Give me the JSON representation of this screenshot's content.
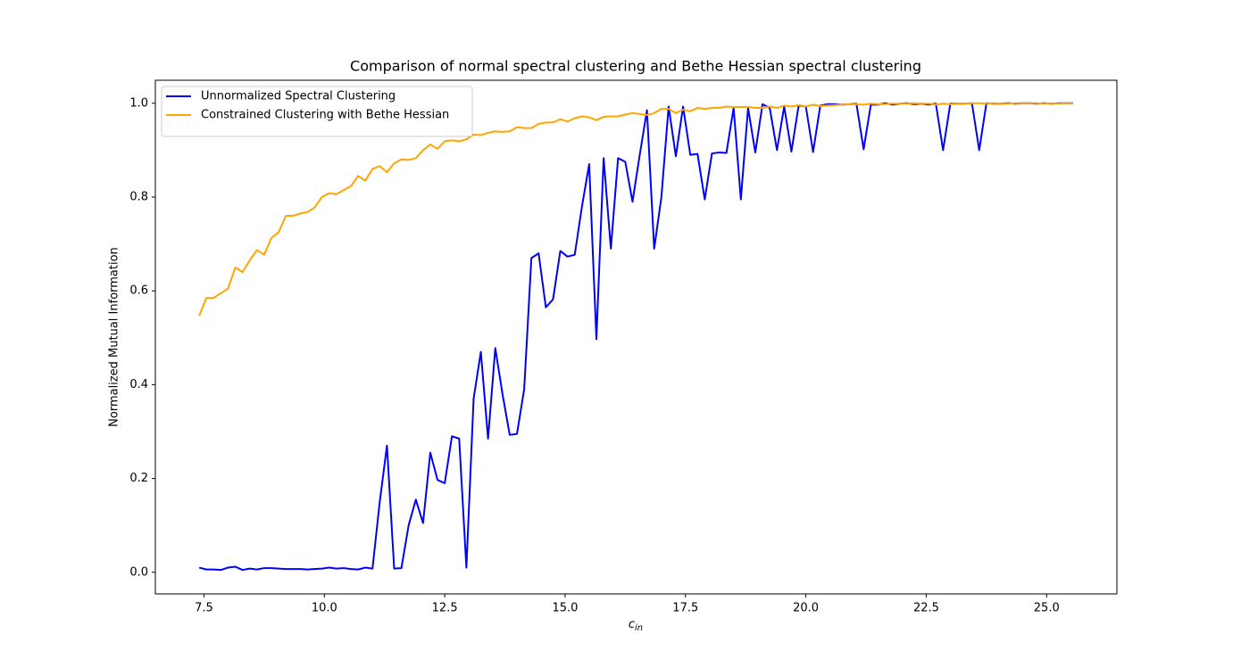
{
  "chart_data": {
    "type": "line",
    "title": "Comparison of normal spectral clustering and Bethe Hessian spectral clustering",
    "xlabel": "c",
    "xlabel_subscript": "in",
    "ylabel": "Normalized Mutual Information",
    "x": [
      7.4,
      7.55,
      7.7,
      7.85,
      8.0,
      8.15,
      8.3,
      8.45,
      8.6,
      8.75,
      8.9,
      9.05,
      9.2,
      9.35,
      9.5,
      9.65,
      9.8,
      9.95,
      10.1,
      10.25,
      10.4,
      10.55,
      10.7,
      10.85,
      11.0,
      11.15,
      11.3,
      11.45,
      11.6,
      11.75,
      11.9,
      12.05,
      12.2,
      12.35,
      12.5,
      12.65,
      12.8,
      12.95,
      13.1,
      13.25,
      13.4,
      13.55,
      13.7,
      13.85,
      14.0,
      14.15,
      14.3,
      14.45,
      14.6,
      14.75,
      14.9,
      15.05,
      15.2,
      15.35,
      15.5,
      15.65,
      15.8,
      15.95,
      16.1,
      16.25,
      16.4,
      16.55,
      16.7,
      16.85,
      17.0,
      17.15,
      17.3,
      17.45,
      17.6,
      17.75,
      17.9,
      18.05,
      18.2,
      18.35,
      18.5,
      18.65,
      18.8,
      18.95,
      19.1,
      19.25,
      19.4,
      19.55,
      19.7,
      19.85,
      20.0,
      20.15,
      20.3,
      20.45,
      20.6,
      20.75,
      20.9,
      21.05,
      21.2,
      21.35,
      21.5,
      21.65,
      21.8,
      21.95,
      22.1,
      22.25,
      22.4,
      22.55,
      22.7,
      22.85,
      23.0,
      23.15,
      23.3,
      23.45,
      23.6,
      23.75,
      23.9,
      24.05,
      24.2,
      24.35,
      24.5,
      24.65,
      24.8,
      24.95,
      25.1,
      25.25,
      25.4,
      25.55
    ],
    "series": [
      {
        "name": "Unnormalized Spectral Clustering",
        "color": "#0000ff",
        "values": [
          0.01,
          0.006,
          0.006,
          0.005,
          0.01,
          0.012,
          0.005,
          0.008,
          0.006,
          0.009,
          0.009,
          0.008,
          0.007,
          0.007,
          0.007,
          0.006,
          0.007,
          0.008,
          0.01,
          0.008,
          0.009,
          0.007,
          0.006,
          0.01,
          0.008,
          0.15,
          0.27,
          0.008,
          0.009,
          0.1,
          0.155,
          0.105,
          0.255,
          0.197,
          0.19,
          0.29,
          0.285,
          0.01,
          0.37,
          0.47,
          0.285,
          0.478,
          0.38,
          0.293,
          0.295,
          0.39,
          0.67,
          0.68,
          0.565,
          0.582,
          0.685,
          0.673,
          0.677,
          0.78,
          0.87,
          0.497,
          0.883,
          0.69,
          0.883,
          0.875,
          0.79,
          0.89,
          0.985,
          0.69,
          0.8,
          0.993,
          0.887,
          0.993,
          0.89,
          0.892,
          0.795,
          0.893,
          0.895,
          0.894,
          0.99,
          0.795,
          0.99,
          0.895,
          0.998,
          0.99,
          0.9,
          0.993,
          0.897,
          0.995,
          0.993,
          0.896,
          0.995,
          0.998,
          0.998,
          0.997,
          0.998,
          0.999,
          0.902,
          0.997,
          0.997,
          1.0,
          0.997,
          0.999,
          1.0,
          0.998,
          0.999,
          0.997,
          0.999,
          0.9,
          0.999,
          0.999,
          0.999,
          1.0,
          0.9,
          1.0,
          0.999,
          0.999,
          1.0,
          0.999,
          1.0,
          1.0,
          0.999,
          1.0,
          0.999,
          1.0,
          1.0,
          1.0
        ]
      },
      {
        "name": "Constrained Clustering with Bethe Hessian",
        "color": "#ffa500",
        "values": [
          0.547,
          0.585,
          0.585,
          0.595,
          0.605,
          0.65,
          0.64,
          0.665,
          0.687,
          0.677,
          0.713,
          0.725,
          0.76,
          0.76,
          0.765,
          0.768,
          0.778,
          0.8,
          0.808,
          0.806,
          0.815,
          0.823,
          0.845,
          0.835,
          0.86,
          0.866,
          0.853,
          0.872,
          0.88,
          0.879,
          0.883,
          0.9,
          0.912,
          0.903,
          0.919,
          0.921,
          0.919,
          0.923,
          0.933,
          0.932,
          0.937,
          0.94,
          0.939,
          0.94,
          0.949,
          0.947,
          0.947,
          0.956,
          0.959,
          0.959,
          0.966,
          0.961,
          0.968,
          0.972,
          0.97,
          0.964,
          0.971,
          0.972,
          0.972,
          0.976,
          0.979,
          0.977,
          0.975,
          0.979,
          0.988,
          0.988,
          0.979,
          0.986,
          0.983,
          0.99,
          0.988,
          0.99,
          0.99,
          0.993,
          0.992,
          0.992,
          0.992,
          0.99,
          0.99,
          0.993,
          0.99,
          0.995,
          0.993,
          0.996,
          0.993,
          0.997,
          0.994,
          0.995,
          0.996,
          0.997,
          0.998,
          0.998,
          0.997,
          0.999,
          0.998,
          0.998,
          0.999,
          0.999,
          0.999,
          1.0,
          0.999,
          0.999,
          0.997,
          0.999,
          0.998,
          0.999,
          0.999,
          1.0,
          1.0,
          0.999,
          1.0,
          0.999,
          0.999,
          1.0,
          1.0,
          1.0,
          1.0,
          0.999,
          1.0,
          0.999,
          1.0,
          1.0
        ]
      }
    ],
    "xlim": [
      6.49,
      26.46
    ],
    "ylim": [
      -0.046,
      1.049
    ],
    "xticks": [
      7.5,
      {
        "value": 10,
        "label": "10.0"
      },
      12.5,
      {
        "value": 15,
        "label": "15.0"
      },
      17.5,
      {
        "value": 20,
        "label": "20.0"
      },
      22.5,
      {
        "value": 25,
        "label": "25.0"
      }
    ],
    "yticks": [
      {
        "value": 0,
        "label": "0.0"
      },
      0.2,
      0.4,
      0.6,
      0.8,
      {
        "value": 1,
        "label": "1.0"
      }
    ],
    "grid": false,
    "legend": "upper-left"
  }
}
